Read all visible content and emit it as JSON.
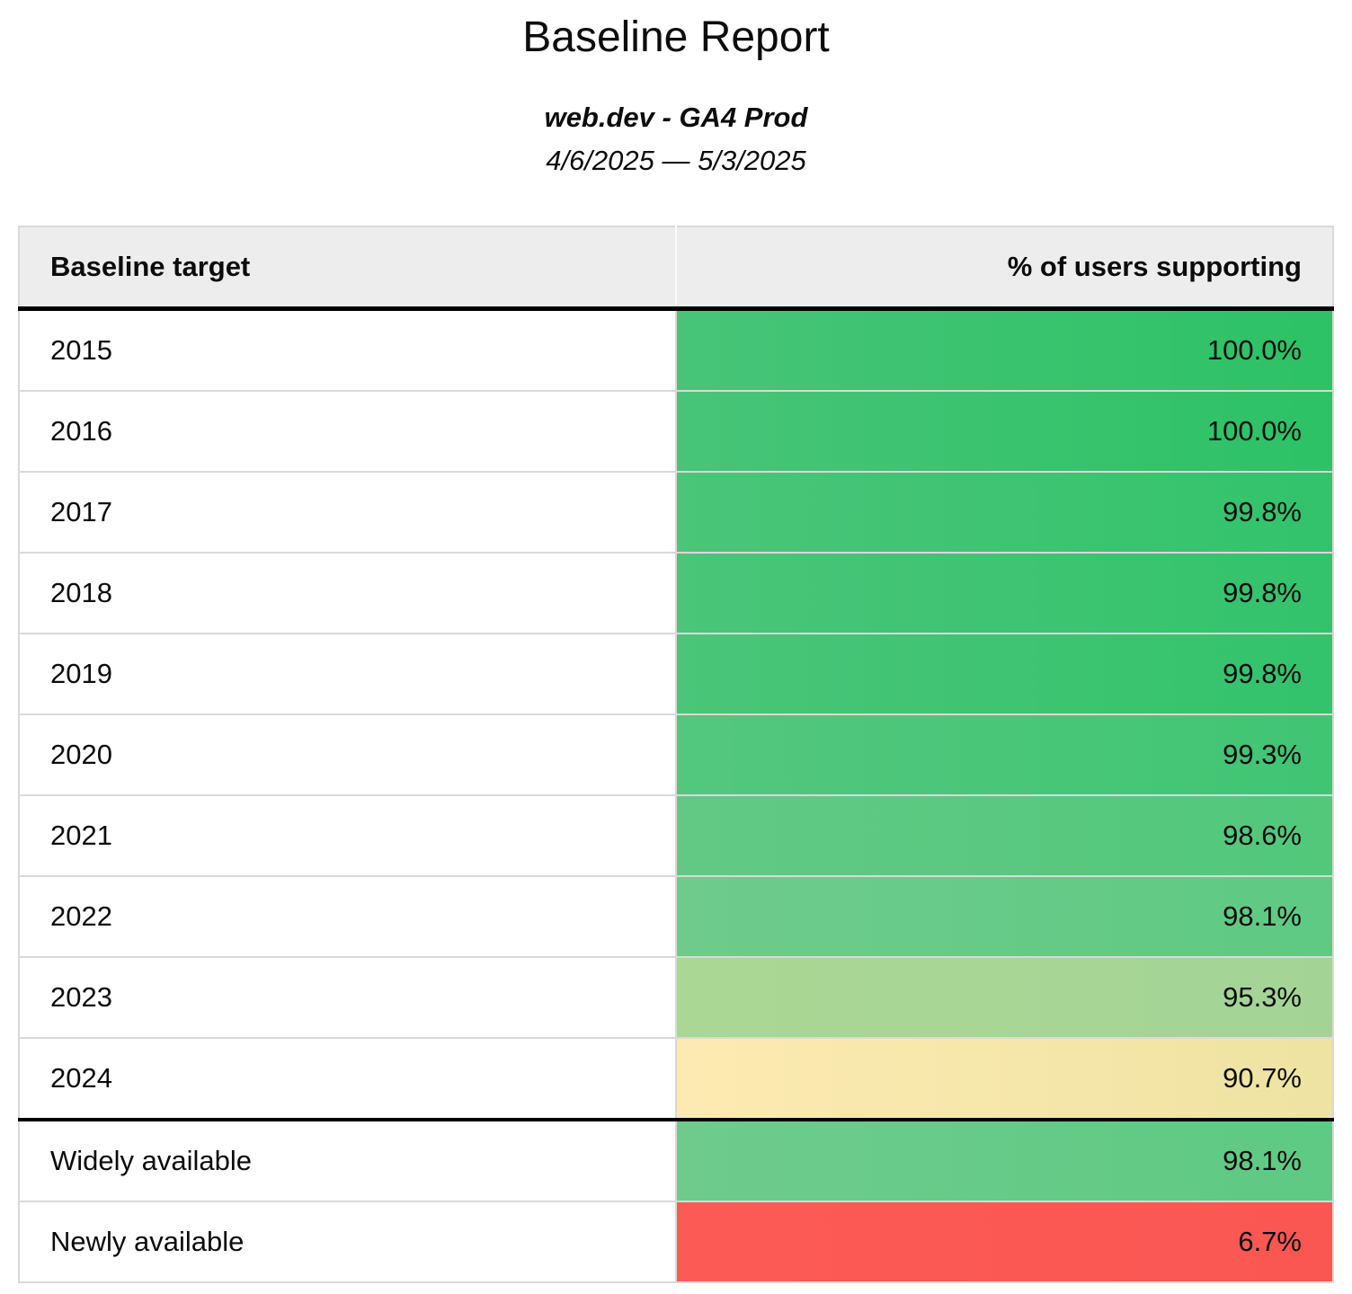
{
  "page": {
    "title": "Baseline Report",
    "subtitle": "web.dev - GA4 Prod",
    "date_range": "4/6/2025 — 5/3/2025"
  },
  "colors": {
    "header_bg": "#ededed",
    "row_border": "#d9d9d9",
    "section_border": "#000000",
    "text": "#0c0c0c",
    "green_full": "#2dc266",
    "yellow_warn": "#f2e4a6",
    "red_low": "#fc5a55"
  },
  "table": {
    "columns": [
      {
        "label": "Baseline target"
      },
      {
        "label": "% of users supporting"
      }
    ],
    "rows": [
      {
        "label": "2015",
        "value": "100.0%",
        "bg_from": "#47c478",
        "bg_to": "#2dc266",
        "section_start": false
      },
      {
        "label": "2016",
        "value": "100.0%",
        "bg_from": "#47c478",
        "bg_to": "#2dc266",
        "section_start": false
      },
      {
        "label": "2017",
        "value": "99.8%",
        "bg_from": "#4ac579",
        "bg_to": "#33c36c",
        "section_start": false
      },
      {
        "label": "2018",
        "value": "99.8%",
        "bg_from": "#4ac579",
        "bg_to": "#33c36c",
        "section_start": false
      },
      {
        "label": "2019",
        "value": "99.8%",
        "bg_from": "#4ac579",
        "bg_to": "#33c36c",
        "section_start": false
      },
      {
        "label": "2020",
        "value": "99.3%",
        "bg_from": "#53c77e",
        "bg_to": "#40c573",
        "section_start": false
      },
      {
        "label": "2021",
        "value": "98.6%",
        "bg_from": "#62c985",
        "bg_to": "#51c87b",
        "section_start": false
      },
      {
        "label": "2022",
        "value": "98.1%",
        "bg_from": "#6ecb8c",
        "bg_to": "#5eca83",
        "section_start": false
      },
      {
        "label": "2023",
        "value": "95.3%",
        "bg_from": "#abd794",
        "bg_to": "#a3d496",
        "section_start": false
      },
      {
        "label": "2024",
        "value": "90.7%",
        "bg_from": "#fdeab2",
        "bg_to": "#eee3a2",
        "section_start": false
      },
      {
        "label": "Widely available",
        "value": "98.1%",
        "bg_from": "#6ecb8c",
        "bg_to": "#5eca83",
        "section_start": true
      },
      {
        "label": "Newly available",
        "value": "6.7%",
        "bg_from": "#fc5a55",
        "bg_to": "#fa5753",
        "section_start": false
      }
    ]
  },
  "chart_data": {
    "type": "table",
    "title": "Baseline Report",
    "subtitle": "web.dev - GA4 Prod",
    "date_range": "4/6/2025 — 5/3/2025",
    "columns": [
      "Baseline target",
      "% of users supporting"
    ],
    "categories": [
      "2015",
      "2016",
      "2017",
      "2018",
      "2019",
      "2020",
      "2021",
      "2022",
      "2023",
      "2024",
      "Widely available",
      "Newly available"
    ],
    "values": [
      100.0,
      100.0,
      99.8,
      99.8,
      99.8,
      99.3,
      98.6,
      98.1,
      95.3,
      90.7,
      98.1,
      6.7
    ],
    "value_format": "percent",
    "layout_hints": {
      "cell_coloring": "heatmap from green (high) through yellow (~90%) to red (low)",
      "sections": [
        "yearly targets 2015-2024",
        "Widely available / Newly available"
      ],
      "value_alignment": "right"
    }
  }
}
